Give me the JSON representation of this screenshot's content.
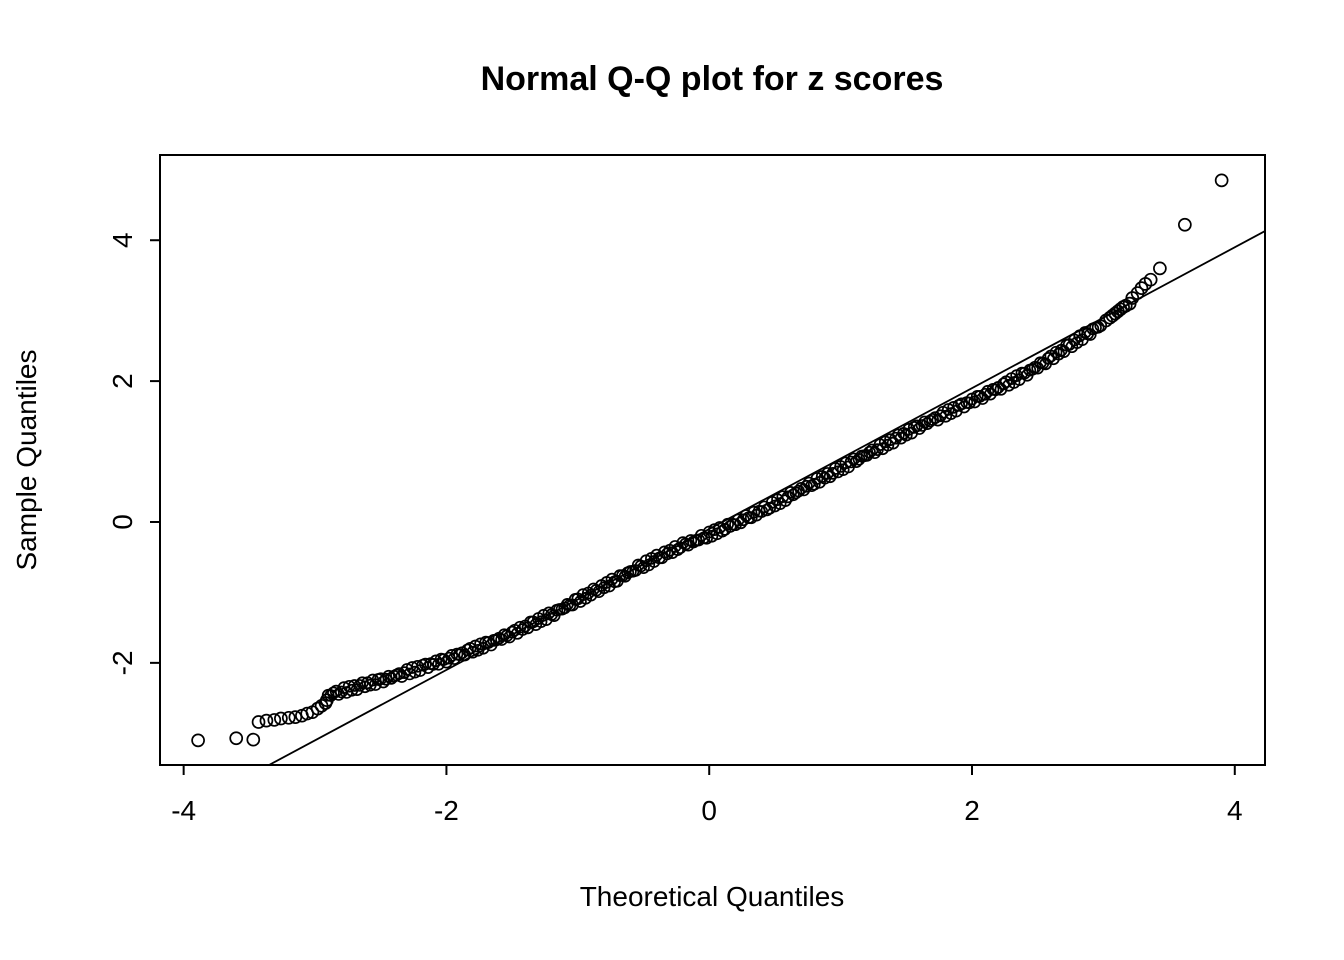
{
  "chart_data": {
    "type": "scatter",
    "subtype": "normal-qq-plot",
    "title": "Normal Q-Q plot for z scores",
    "xlabel": "Theoretical Quantiles",
    "ylabel": "Sample Quantiles",
    "x_ticks": [
      -4,
      -2,
      0,
      2,
      4
    ],
    "y_ticks": [
      -2,
      0,
      2,
      4
    ],
    "xlim": [
      -4.18,
      4.23
    ],
    "ylim": [
      -3.45,
      5.21
    ],
    "grid": false,
    "background_color": "#ffffff",
    "marker": {
      "shape": "open-circle",
      "color": "#000000"
    },
    "reference_line": {
      "slope": 1.0,
      "intercept": -0.1,
      "color": "#000000"
    },
    "band": {
      "description": "dense overplotted band of open circles from x=-2.9 to x=3.0",
      "step": 0.022,
      "jitter": 0.04,
      "anchors": [
        [
          -2.9,
          -2.46
        ],
        [
          -2.8,
          -2.4
        ],
        [
          -2.7,
          -2.35
        ],
        [
          -2.6,
          -2.3
        ],
        [
          -2.5,
          -2.25
        ],
        [
          -2.4,
          -2.19
        ],
        [
          -2.3,
          -2.13
        ],
        [
          -2.2,
          -2.07
        ],
        [
          -2.1,
          -2.01
        ],
        [
          -2.0,
          -1.95
        ],
        [
          -1.9,
          -1.88
        ],
        [
          -1.8,
          -1.81
        ],
        [
          -1.7,
          -1.74
        ],
        [
          -1.6,
          -1.66
        ],
        [
          -1.5,
          -1.58
        ],
        [
          -1.4,
          -1.49
        ],
        [
          -1.3,
          -1.4
        ],
        [
          -1.2,
          -1.31
        ],
        [
          -1.1,
          -1.21
        ],
        [
          -1.0,
          -1.11
        ],
        [
          -0.9,
          -1.01
        ],
        [
          -0.8,
          -0.91
        ],
        [
          -0.7,
          -0.81
        ],
        [
          -0.6,
          -0.71
        ],
        [
          -0.5,
          -0.61
        ],
        [
          -0.4,
          -0.51
        ],
        [
          -0.3,
          -0.42
        ],
        [
          -0.2,
          -0.33
        ],
        [
          -0.1,
          -0.26
        ],
        [
          0.0,
          -0.18
        ],
        [
          0.1,
          -0.1
        ],
        [
          0.2,
          -0.02
        ],
        [
          0.3,
          0.07
        ],
        [
          0.4,
          0.16
        ],
        [
          0.5,
          0.26
        ],
        [
          0.6,
          0.36
        ],
        [
          0.7,
          0.46
        ],
        [
          0.8,
          0.56
        ],
        [
          0.9,
          0.66
        ],
        [
          1.0,
          0.76
        ],
        [
          1.1,
          0.86
        ],
        [
          1.2,
          0.96
        ],
        [
          1.3,
          1.06
        ],
        [
          1.4,
          1.16
        ],
        [
          1.5,
          1.26
        ],
        [
          1.6,
          1.36
        ],
        [
          1.7,
          1.45
        ],
        [
          1.8,
          1.54
        ],
        [
          1.9,
          1.63
        ],
        [
          2.0,
          1.72
        ],
        [
          2.1,
          1.81
        ],
        [
          2.2,
          1.9
        ],
        [
          2.3,
          2.0
        ],
        [
          2.4,
          2.1
        ],
        [
          2.5,
          2.21
        ],
        [
          2.6,
          2.33
        ],
        [
          2.7,
          2.45
        ],
        [
          2.8,
          2.58
        ],
        [
          2.9,
          2.7
        ],
        [
          3.0,
          2.82
        ]
      ]
    },
    "left_tail_points": [
      [
        -3.89,
        -3.1
      ],
      [
        -3.6,
        -3.07
      ],
      [
        -3.47,
        -3.09
      ],
      [
        -3.43,
        -2.84
      ],
      [
        -3.37,
        -2.82
      ],
      [
        -3.31,
        -2.81
      ],
      [
        -3.26,
        -2.79
      ],
      [
        -3.2,
        -2.78
      ],
      [
        -3.15,
        -2.77
      ],
      [
        -3.1,
        -2.75
      ],
      [
        -3.06,
        -2.72
      ],
      [
        -3.02,
        -2.7
      ],
      [
        -2.98,
        -2.65
      ],
      [
        -2.95,
        -2.61
      ],
      [
        -2.92,
        -2.57
      ],
      [
        -2.91,
        -2.53
      ]
    ],
    "right_tail_points": [
      [
        3.02,
        2.86
      ],
      [
        3.05,
        2.9
      ],
      [
        3.07,
        2.93
      ],
      [
        3.09,
        2.96
      ],
      [
        3.11,
        2.99
      ],
      [
        3.13,
        3.02
      ],
      [
        3.15,
        3.05
      ],
      [
        3.17,
        3.07
      ],
      [
        3.2,
        3.1
      ],
      [
        3.22,
        3.18
      ],
      [
        3.26,
        3.25
      ],
      [
        3.29,
        3.32
      ],
      [
        3.32,
        3.38
      ],
      [
        3.36,
        3.44
      ],
      [
        3.43,
        3.6
      ],
      [
        3.62,
        4.22
      ],
      [
        3.9,
        4.85
      ]
    ]
  }
}
